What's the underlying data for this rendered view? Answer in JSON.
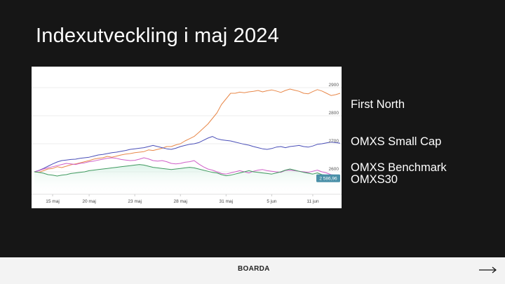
{
  "slide": {
    "title": "Indexutveckling i maj 2024"
  },
  "footer": {
    "brand": "BOARDA",
    "next_icon": "arrow-right-icon"
  },
  "chart_data": {
    "type": "line",
    "title": "Indexutveckling i maj 2024",
    "x_ticks": [
      "15 maj",
      "20 maj",
      "23 maj",
      "28 maj",
      "31 maj",
      "5 jun",
      "11 jun"
    ],
    "x_tick_index": [
      4,
      12,
      22,
      32,
      42,
      52,
      61
    ],
    "y_ticks": [
      2600,
      2700,
      2800,
      2900
    ],
    "ylim": [
      2520,
      2950
    ],
    "grid": "horizontal",
    "last_value_label": "2 586,96",
    "series": [
      {
        "name": "First North",
        "color": "#e8884a",
        "values": [
          2600,
          2598,
          2604,
          2610,
          2612,
          2618,
          2615,
          2620,
          2625,
          2628,
          2632,
          2636,
          2640,
          2645,
          2648,
          2650,
          2655,
          2652,
          2656,
          2660,
          2663,
          2665,
          2668,
          2670,
          2672,
          2678,
          2676,
          2680,
          2684,
          2690,
          2690,
          2696,
          2700,
          2710,
          2718,
          2726,
          2740,
          2755,
          2770,
          2790,
          2810,
          2840,
          2860,
          2880,
          2880,
          2884,
          2882,
          2885,
          2887,
          2890,
          2885,
          2889,
          2892,
          2888,
          2883,
          2890,
          2895,
          2891,
          2887,
          2880,
          2878,
          2886,
          2893,
          2888,
          2880,
          2872,
          2875,
          2880
        ]
      },
      {
        "name": "OMXS Small Cap",
        "color": "#4a4fb8",
        "values": [
          2600,
          2605,
          2612,
          2620,
          2628,
          2635,
          2640,
          2642,
          2644,
          2645,
          2648,
          2650,
          2652,
          2656,
          2660,
          2662,
          2665,
          2668,
          2670,
          2673,
          2676,
          2680,
          2682,
          2684,
          2686,
          2690,
          2694,
          2690,
          2686,
          2682,
          2680,
          2684,
          2690,
          2694,
          2698,
          2700,
          2704,
          2712,
          2720,
          2726,
          2718,
          2714,
          2712,
          2710,
          2706,
          2702,
          2698,
          2695,
          2690,
          2686,
          2682,
          2680,
          2683,
          2688,
          2690,
          2686,
          2690,
          2692,
          2694,
          2690,
          2688,
          2692,
          2698,
          2700,
          2703,
          2706,
          2704,
          2702
        ]
      },
      {
        "name": "OMXS Benchmark",
        "color": "#d060c8",
        "values": [
          2600,
          2604,
          2610,
          2614,
          2618,
          2622,
          2626,
          2630,
          2628,
          2626,
          2630,
          2632,
          2636,
          2638,
          2642,
          2645,
          2648,
          2650,
          2648,
          2644,
          2642,
          2640,
          2641,
          2645,
          2650,
          2646,
          2640,
          2638,
          2640,
          2636,
          2630,
          2628,
          2630,
          2634,
          2636,
          2640,
          2628,
          2618,
          2610,
          2606,
          2600,
          2594,
          2592,
          2596,
          2600,
          2604,
          2600,
          2596,
          2602,
          2606,
          2608,
          2604,
          2602,
          2600,
          2598,
          2605,
          2606,
          2604,
          2602,
          2600,
          2598,
          2602,
          2606,
          2600,
          2596,
          2590,
          2588,
          2586
        ]
      },
      {
        "name": "OMXS30",
        "color": "#3f9a5f",
        "values": [
          2600,
          2598,
          2595,
          2590,
          2588,
          2585,
          2588,
          2590,
          2594,
          2596,
          2598,
          2600,
          2604,
          2606,
          2608,
          2610,
          2612,
          2614,
          2616,
          2618,
          2620,
          2622,
          2624,
          2626,
          2624,
          2620,
          2616,
          2614,
          2612,
          2610,
          2608,
          2610,
          2612,
          2614,
          2616,
          2614,
          2610,
          2606,
          2602,
          2598,
          2596,
          2590,
          2586,
          2588,
          2592,
          2596,
          2600,
          2604,
          2600,
          2598,
          2596,
          2594,
          2592,
          2596,
          2600,
          2606,
          2610,
          2606,
          2602,
          2598,
          2595,
          2592,
          2596,
          2590,
          2588,
          2586,
          2588,
          2587
        ]
      }
    ],
    "legend": {
      "placement": "right",
      "labels": [
        "First North",
        "OMXS Small Cap",
        "OMXS Benchmark",
        "OMXS30"
      ]
    }
  }
}
